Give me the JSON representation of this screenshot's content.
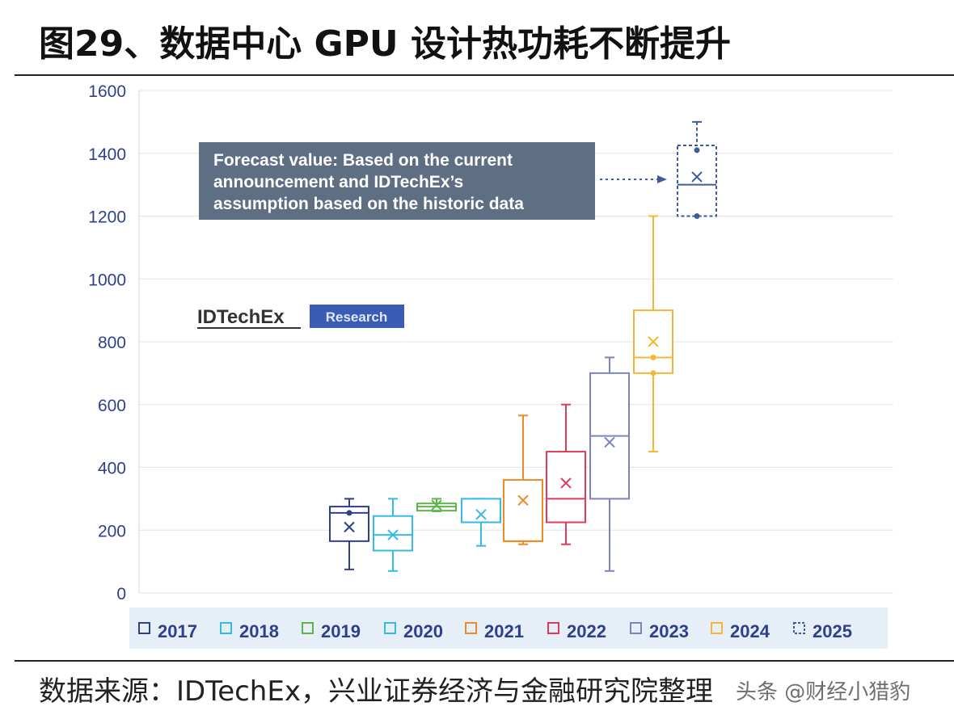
{
  "title": "图29、数据中心 GPU 设计热功耗不断提升",
  "source": "数据来源：IDTechEx，兴业证券经济与金融研究院整理",
  "watermark": "头条 @财经小猎豹",
  "forecast_note": [
    "Forecast value: Based on the current",
    "announcement and IDTechEx’s",
    "assumption based on the historic data"
  ],
  "logo": {
    "brand": "IDTechEx",
    "tag": "Research"
  },
  "chart_data": {
    "type": "box",
    "ylim": [
      0,
      1600
    ],
    "yticks": [
      0,
      200,
      400,
      600,
      800,
      1000,
      1200,
      1400,
      1600
    ],
    "legend_position": "bottom",
    "series": [
      {
        "name": "2017",
        "color": "#2e3f8f",
        "dashed": false,
        "min": 75,
        "q1": 165,
        "median": 255,
        "q3": 275,
        "max": 300,
        "mean": 210,
        "points": [
          255
        ]
      },
      {
        "name": "2018",
        "color": "#35b9e6",
        "dashed": false,
        "min": 70,
        "q1": 135,
        "median": 185,
        "q3": 245,
        "max": 300,
        "mean": 185,
        "points": []
      },
      {
        "name": "2019",
        "color": "#5fb34a",
        "dashed": false,
        "min": 260,
        "q1": 262,
        "median": 275,
        "q3": 285,
        "max": 300,
        "mean": 280,
        "points": []
      },
      {
        "name": "2020",
        "color": "#35b9e6",
        "dashed": false,
        "min": 150,
        "q1": 225,
        "median": 225,
        "q3": 300,
        "max": 300,
        "mean": 250,
        "points": []
      },
      {
        "name": "2021",
        "color": "#f08a24",
        "dashed": false,
        "min": 155,
        "q1": 165,
        "median": 165,
        "q3": 360,
        "max": 565,
        "mean": 295,
        "points": []
      },
      {
        "name": "2022",
        "color": "#e03b59",
        "dashed": false,
        "min": 155,
        "q1": 225,
        "median": 300,
        "q3": 450,
        "max": 600,
        "mean": 350,
        "points": []
      },
      {
        "name": "2023",
        "color": "#7d82c0",
        "dashed": false,
        "min": 70,
        "q1": 300,
        "median": 500,
        "q3": 700,
        "max": 750,
        "mean": 480,
        "points": []
      },
      {
        "name": "2024",
        "color": "#f5b733",
        "dashed": false,
        "min": 450,
        "q1": 700,
        "median": 750,
        "q3": 900,
        "max": 1200,
        "mean": 800,
        "points": [
          750,
          700
        ]
      },
      {
        "name": "2025",
        "color": "#3e5ba0",
        "dashed": true,
        "min": 1200,
        "q1": 1200,
        "median": 1300,
        "q3": 1425,
        "max": 1500,
        "mean": 1325,
        "points": [
          1410,
          1200
        ]
      }
    ]
  }
}
